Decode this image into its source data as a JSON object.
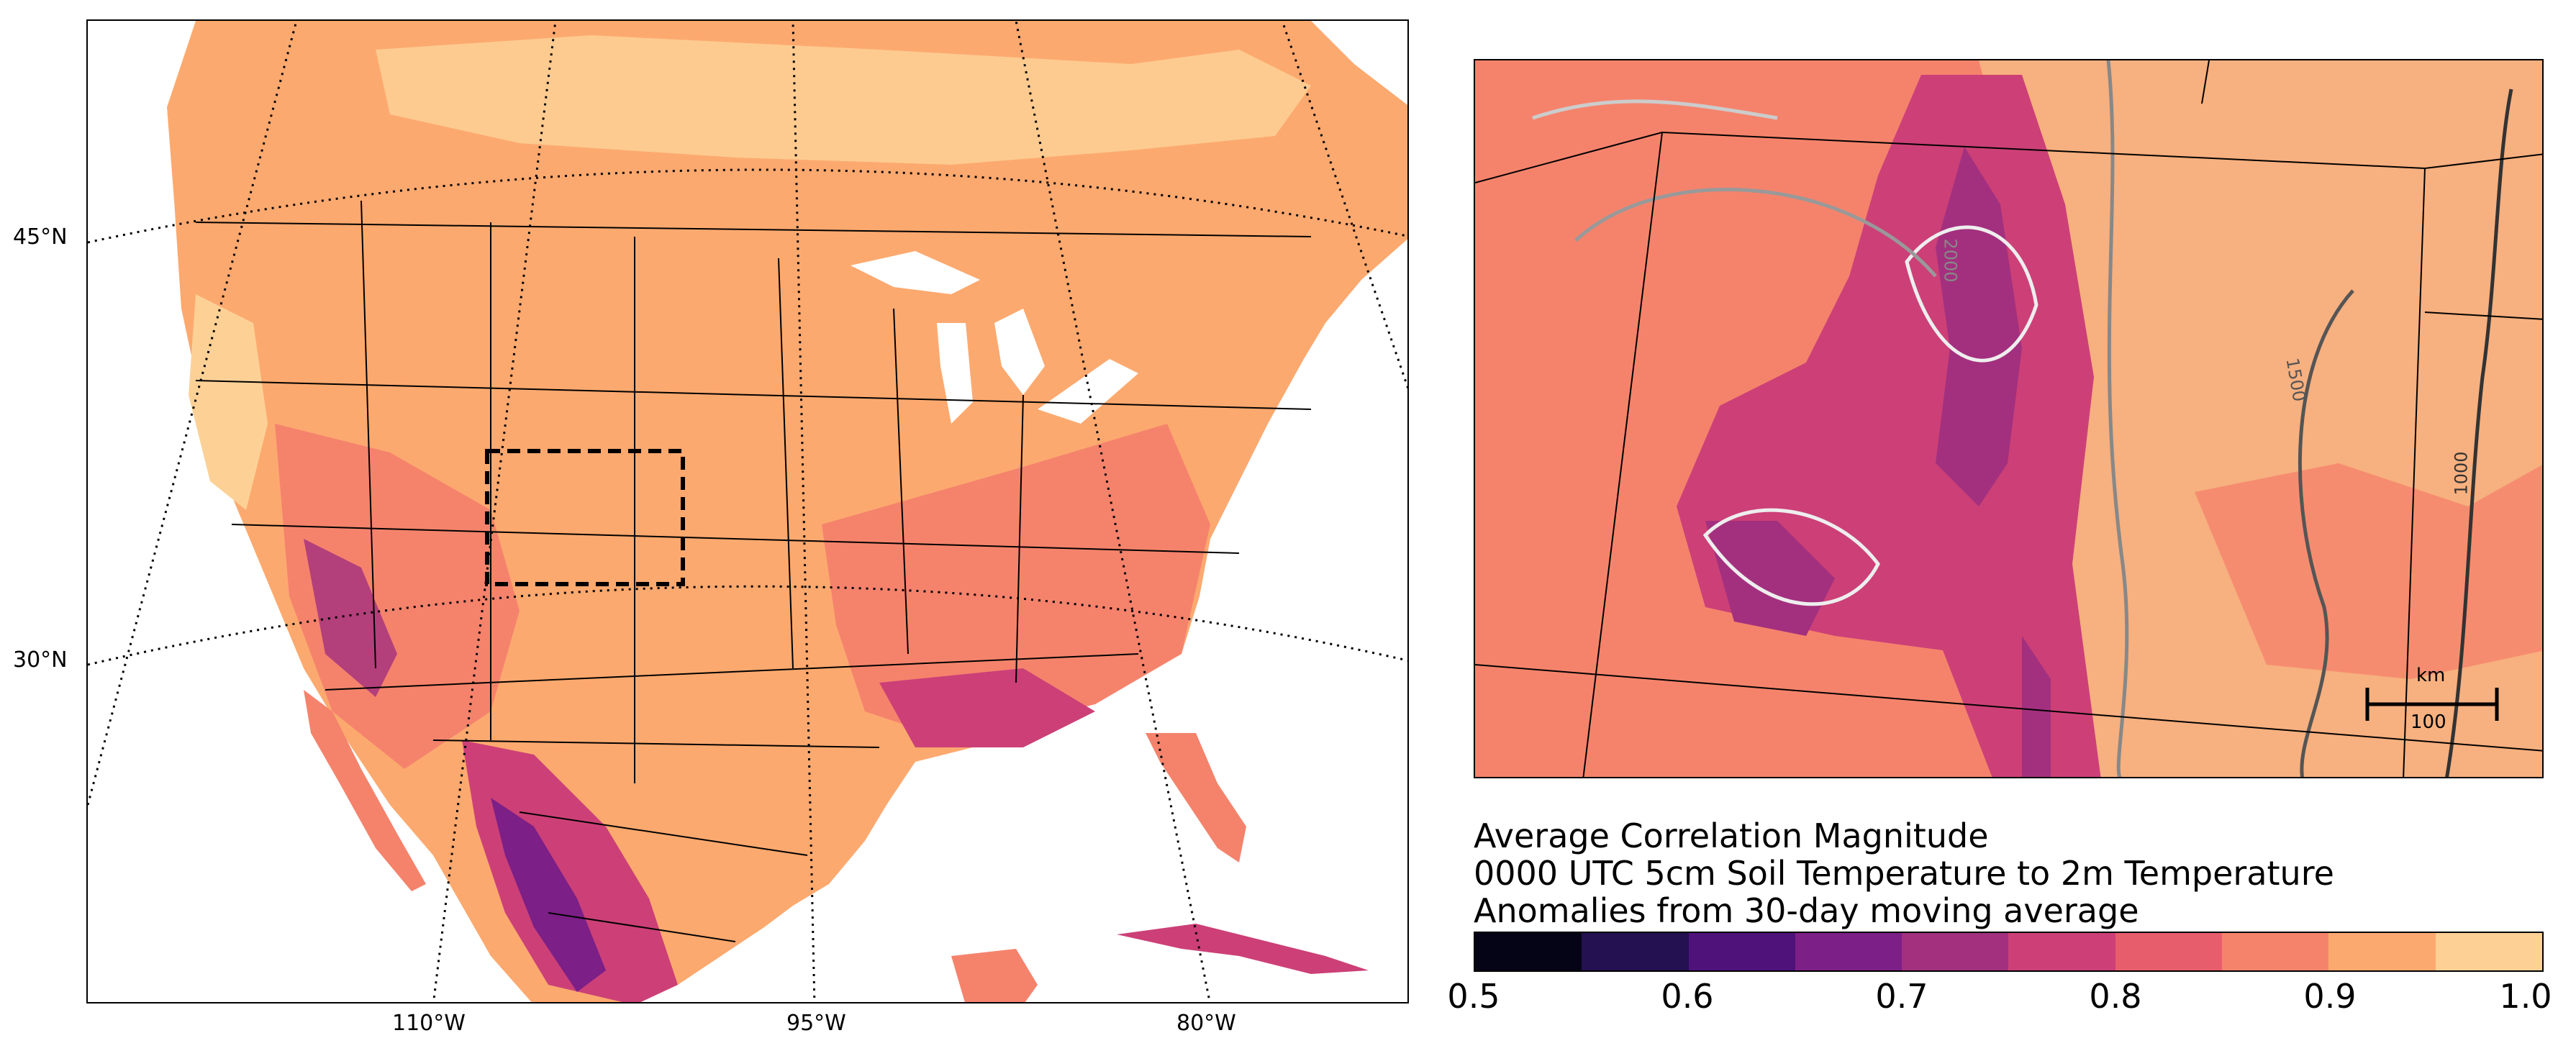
{
  "left_map": {
    "lat_labels": [
      "45°N",
      "30°N"
    ],
    "lon_labels": [
      "110°W",
      "95°W",
      "80°W"
    ]
  },
  "right_map": {
    "contour_labels": [
      "2000",
      "1500",
      "1000"
    ],
    "scale_bar": {
      "unit": "km",
      "length": "100"
    }
  },
  "title": {
    "line1": "Average Correlation Magnitude",
    "line2": "0000 UTC 5cm Soil Temperature to 2m Temperature",
    "line3": "Anomalies from 30-day moving average"
  },
  "colorbar": {
    "ticks": [
      "0.5",
      "0.6",
      "0.7",
      "0.8",
      "0.9",
      "1.0"
    ],
    "colors": [
      "#050417",
      "#231151",
      "#4f127b",
      "#7c1f87",
      "#a3307e",
      "#cc4077",
      "#e85d6b",
      "#f5836c",
      "#fca96f",
      "#fdd196"
    ]
  },
  "palette": {
    "land_high": "#fca96f",
    "land_mid": "#f5836c",
    "land_low": "#cc4077",
    "land_lowest": "#7c1f87",
    "land_top": "#fdd196"
  }
}
